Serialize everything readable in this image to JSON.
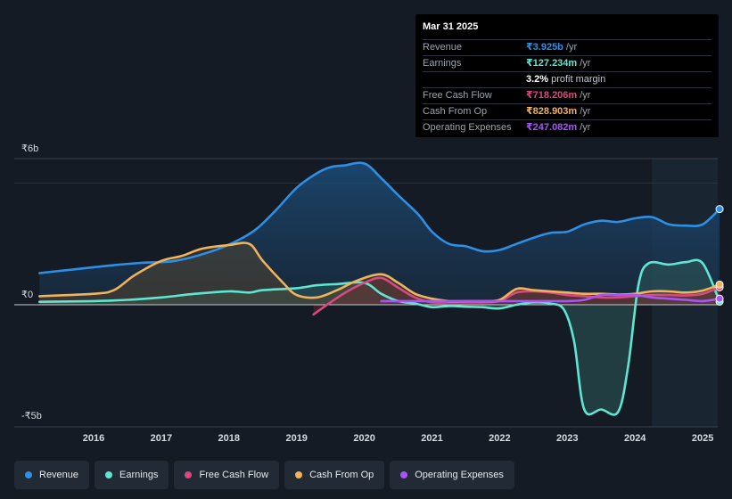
{
  "tooltip": {
    "date": "Mar 31 2025",
    "rows": [
      {
        "label": "Revenue",
        "value": "₹3.925b",
        "unit": "/yr",
        "color": "#2d8fe6"
      },
      {
        "label": "Earnings",
        "value": "₹127.234m",
        "unit": "/yr",
        "color": "#5ee6d3"
      },
      {
        "label": "",
        "value": "3.2%",
        "unit": "profit margin",
        "color": "#ffffff"
      },
      {
        "label": "Free Cash Flow",
        "value": "₹718.206m",
        "unit": "/yr",
        "color": "#d9497f"
      },
      {
        "label": "Cash From Op",
        "value": "₹828.903m",
        "unit": "/yr",
        "color": "#f0b35c"
      },
      {
        "label": "Operating Expenses",
        "value": "₹247.082m",
        "unit": "/yr",
        "color": "#a855f7"
      }
    ]
  },
  "legend": [
    {
      "label": "Revenue",
      "color": "#2d8fe6"
    },
    {
      "label": "Earnings",
      "color": "#5ee6d3"
    },
    {
      "label": "Free Cash Flow",
      "color": "#d9497f"
    },
    {
      "label": "Cash From Op",
      "color": "#f0b35c"
    },
    {
      "label": "Operating Expenses",
      "color": "#a855f7"
    }
  ],
  "chart_data": {
    "type": "area",
    "title": "",
    "ylabel_top": "₹6b",
    "ylabel_zero": "₹0",
    "ylabel_bottom": "-₹5b",
    "ylim": [
      -5,
      6
    ],
    "xlim": [
      2015.2,
      2025.25
    ],
    "x_ticks": [
      "2016",
      "2017",
      "2018",
      "2019",
      "2020",
      "2021",
      "2022",
      "2023",
      "2024",
      "2025"
    ],
    "x_tick_values": [
      2016,
      2017,
      2018,
      2019,
      2020,
      2021,
      2022,
      2023,
      2024,
      2025
    ],
    "forecast_start": 2024.25,
    "series": [
      {
        "name": "Revenue",
        "color": "#2d8fe6",
        "fill": true,
        "x": [
          2015.2,
          2015.7,
          2016.2,
          2016.7,
          2017.2,
          2017.7,
          2018.1,
          2018.4,
          2018.7,
          2019.0,
          2019.3,
          2019.5,
          2019.7,
          2020.0,
          2020.25,
          2020.5,
          2020.8,
          2021.0,
          2021.25,
          2021.5,
          2021.75,
          2022.0,
          2022.25,
          2022.5,
          2022.75,
          2023.0,
          2023.25,
          2023.5,
          2023.75,
          2024.0,
          2024.25,
          2024.5,
          2024.75,
          2025.0,
          2025.25
        ],
        "values": [
          1.3,
          1.45,
          1.6,
          1.72,
          1.8,
          2.15,
          2.6,
          3.1,
          3.9,
          4.8,
          5.4,
          5.65,
          5.72,
          5.8,
          5.2,
          4.5,
          3.7,
          3.0,
          2.5,
          2.4,
          2.2,
          2.25,
          2.5,
          2.75,
          2.95,
          3.0,
          3.3,
          3.45,
          3.4,
          3.55,
          3.6,
          3.3,
          3.25,
          3.3,
          3.93
        ]
      },
      {
        "name": "Earnings",
        "color": "#5ee6d3",
        "fill": true,
        "x": [
          2015.2,
          2016.0,
          2016.5,
          2017.0,
          2017.5,
          2018.0,
          2018.3,
          2018.5,
          2019.0,
          2019.3,
          2019.6,
          2020.0,
          2020.25,
          2020.5,
          2020.75,
          2021.0,
          2021.25,
          2021.5,
          2021.75,
          2022.0,
          2022.25,
          2022.5,
          2022.75,
          2022.95,
          2023.1,
          2023.25,
          2023.5,
          2023.75,
          2023.9,
          2024.05,
          2024.2,
          2024.5,
          2024.75,
          2025.0,
          2025.25
        ],
        "values": [
          0.12,
          0.15,
          0.2,
          0.3,
          0.45,
          0.55,
          0.5,
          0.6,
          0.68,
          0.8,
          0.85,
          0.9,
          0.45,
          0.15,
          0.05,
          -0.1,
          -0.05,
          -0.08,
          -0.1,
          -0.15,
          0.0,
          0.1,
          0.05,
          -0.2,
          -1.5,
          -4.3,
          -4.3,
          -4.4,
          -2.5,
          0.8,
          1.7,
          1.65,
          1.75,
          1.7,
          0.13
        ]
      },
      {
        "name": "Free Cash Flow",
        "color": "#d9497f",
        "fill": true,
        "x": [
          2019.25,
          2019.5,
          2019.75,
          2020.0,
          2020.25,
          2020.5,
          2020.75,
          2021.0,
          2021.25,
          2021.5,
          2021.75,
          2022.0,
          2022.25,
          2022.5,
          2022.75,
          2023.0,
          2023.25,
          2023.5,
          2023.75,
          2024.0,
          2024.25,
          2024.5,
          2024.75,
          2025.0,
          2025.25
        ],
        "values": [
          -0.4,
          0.1,
          0.55,
          0.9,
          1.1,
          0.7,
          0.3,
          0.1,
          0.1,
          0.1,
          0.1,
          0.15,
          0.5,
          0.55,
          0.5,
          0.4,
          0.35,
          0.3,
          0.3,
          0.35,
          0.4,
          0.4,
          0.38,
          0.45,
          0.72
        ]
      },
      {
        "name": "Cash From Op",
        "color": "#f0b35c",
        "fill": true,
        "x": [
          2015.2,
          2016.0,
          2016.3,
          2016.6,
          2017.0,
          2017.3,
          2017.6,
          2018.0,
          2018.3,
          2018.5,
          2018.8,
          2019.0,
          2019.3,
          2019.6,
          2019.9,
          2020.25,
          2020.5,
          2020.75,
          2021.0,
          2021.25,
          2021.5,
          2021.75,
          2022.0,
          2022.25,
          2022.5,
          2022.75,
          2023.0,
          2023.25,
          2023.5,
          2023.75,
          2024.0,
          2024.25,
          2024.5,
          2024.75,
          2025.0,
          2025.25
        ],
        "values": [
          0.35,
          0.45,
          0.6,
          1.2,
          1.8,
          2.0,
          2.3,
          2.45,
          2.5,
          1.8,
          0.9,
          0.4,
          0.3,
          0.6,
          1.0,
          1.25,
          0.9,
          0.45,
          0.25,
          0.15,
          0.15,
          0.15,
          0.2,
          0.65,
          0.6,
          0.55,
          0.5,
          0.45,
          0.45,
          0.42,
          0.45,
          0.55,
          0.55,
          0.5,
          0.58,
          0.83
        ]
      },
      {
        "name": "Operating Expenses",
        "color": "#a855f7",
        "fill": false,
        "x": [
          2020.25,
          2020.5,
          2020.75,
          2021.0,
          2021.25,
          2021.5,
          2021.75,
          2022.0,
          2022.25,
          2022.5,
          2022.75,
          2023.0,
          2023.25,
          2023.5,
          2023.75,
          2024.0,
          2024.25,
          2024.5,
          2024.75,
          2025.0,
          2025.25
        ],
        "values": [
          0.15,
          0.15,
          0.15,
          0.15,
          0.15,
          0.15,
          0.15,
          0.15,
          0.15,
          0.15,
          0.15,
          0.15,
          0.2,
          0.4,
          0.4,
          0.4,
          0.3,
          0.25,
          0.2,
          0.15,
          0.25
        ]
      }
    ]
  }
}
